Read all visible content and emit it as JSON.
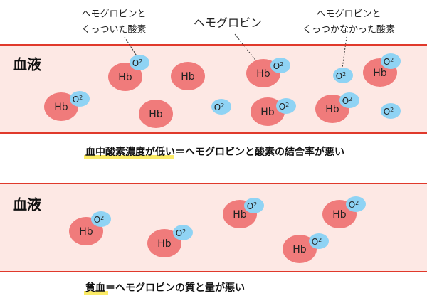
{
  "annotations": [
    {
      "lines": [
        "ヘモグロビンと",
        "くっついた酸素"
      ]
    },
    {
      "lines": [
        "ヘモグロビン"
      ]
    },
    {
      "lines": [
        "ヘモグロビンと",
        "くっつかなかった酸素"
      ]
    }
  ],
  "hb_label": "Hb",
  "o2_label": {
    "base": "O",
    "sub": "2"
  },
  "panels": [
    {
      "label": "血液",
      "caption": {
        "highlight": "血中酸素濃度が低い",
        "rest": "＝ヘモグロビンと酸素の結合率が悪い"
      }
    },
    {
      "label": "血液",
      "caption": {
        "highlight": "貧血",
        "rest": "＝ヘモグロビンの質と量が悪い"
      }
    }
  ]
}
